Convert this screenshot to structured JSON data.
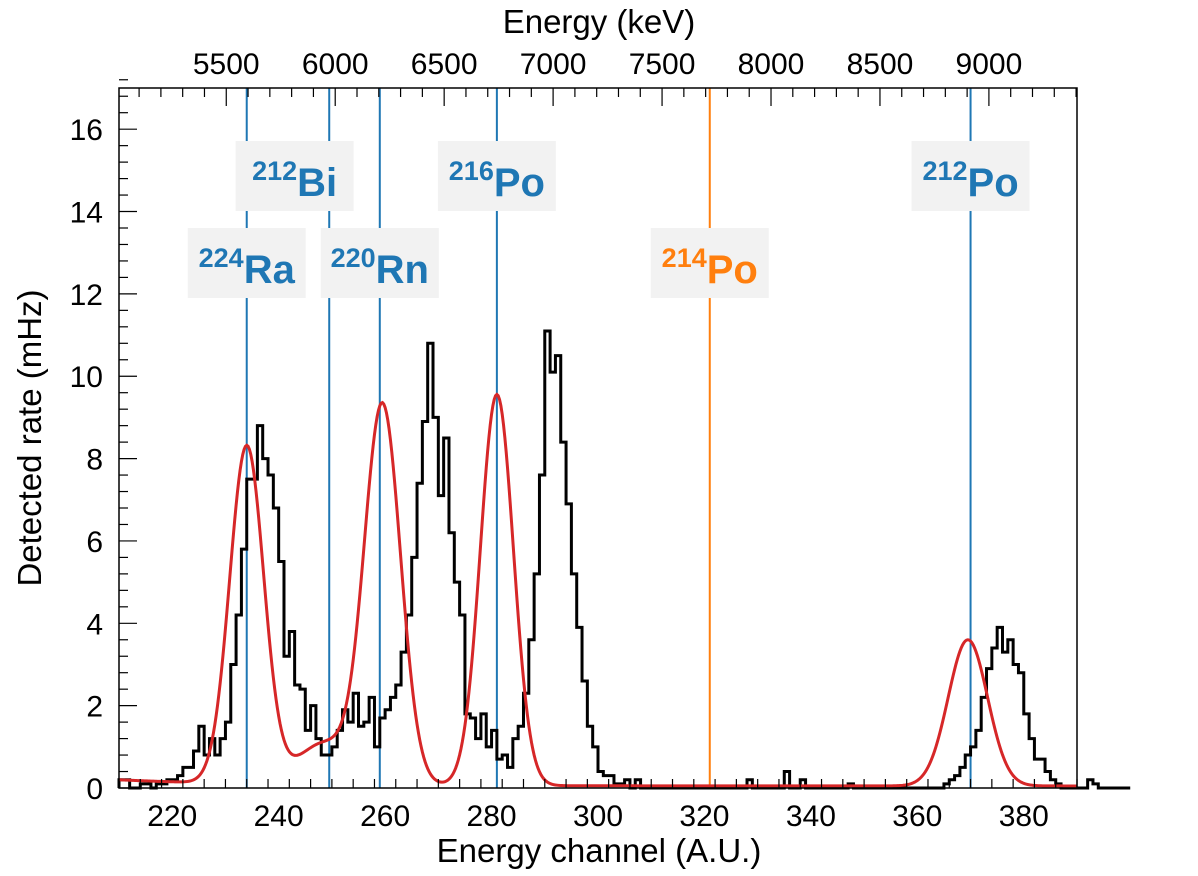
{
  "chart_data": {
    "type": "line",
    "title": "",
    "xlabel": "Energy channel (A.U.)",
    "ylabel": "Detected rate (mHz)",
    "x2label": "Energy (keV)",
    "xlim": [
      210,
      390
    ],
    "ylim": [
      0,
      17
    ],
    "x_ticks": [
      220,
      240,
      260,
      280,
      300,
      320,
      340,
      360,
      380
    ],
    "y_ticks": [
      0,
      2,
      4,
      6,
      8,
      10,
      12,
      14,
      16
    ],
    "x2_ticks": [
      5500,
      6000,
      6500,
      7000,
      7500,
      8000,
      8500,
      9000
    ],
    "x2_calibration": {
      "channel_a": 220,
      "kev_a": 5252,
      "channel_b": 380,
      "kev_b": 9160
    },
    "grid": false,
    "colors": {
      "histogram": "#000000",
      "fit": "#d62728",
      "line_blue": "#1f77b4",
      "line_orange": "#ff7f0e",
      "label_box": "#f2f2f2"
    },
    "histogram": {
      "name": "",
      "bin_width": 1,
      "x_start": 210,
      "values": [
        0.2,
        0.2,
        0.0,
        0.0,
        0.1,
        0.1,
        0.0,
        0.1,
        0.1,
        0.2,
        0.2,
        0.3,
        0.5,
        0.5,
        0.9,
        1.5,
        0.8,
        1.2,
        0.8,
        1.2,
        1.6,
        3.0,
        4.2,
        5.8,
        7.5,
        7.5,
        8.8,
        8.0,
        7.6,
        6.8,
        5.5,
        3.2,
        3.8,
        2.5,
        2.4,
        1.4,
        2.0,
        1.2,
        0.8,
        0.8,
        1.0,
        1.4,
        1.9,
        1.6,
        2.3,
        1.5,
        1.6,
        2.2,
        1.0,
        1.7,
        1.9,
        2.2,
        2.5,
        3.3,
        4.2,
        5.6,
        7.4,
        8.9,
        10.8,
        9.0,
        7.1,
        8.5,
        6.2,
        5.0,
        4.2,
        1.8,
        1.7,
        1.2,
        1.8,
        1.0,
        1.4,
        0.7,
        0.8,
        0.5,
        1.2,
        1.5,
        2.3,
        3.6,
        5.2,
        7.6,
        11.1,
        10.1,
        10.5,
        8.4,
        6.9,
        5.2,
        3.9,
        2.6,
        1.5,
        1.0,
        0.4,
        0.3,
        0.3,
        0.1,
        0.1,
        0.2,
        0.0,
        0.2,
        0.0,
        0.0,
        0.0,
        0.0,
        0.0,
        0.0,
        0.0,
        0.0,
        0.0,
        0.0,
        0.0,
        0.0,
        0.0,
        0.0,
        0.0,
        0.0,
        0.0,
        0.0,
        0.0,
        0.0,
        0.2,
        0.0,
        0.0,
        0.0,
        0.0,
        0.0,
        0.0,
        0.4,
        0.0,
        0.0,
        0.2,
        0.0,
        0.0,
        0.0,
        0.0,
        0.0,
        0.0,
        0.0,
        0.0,
        0.1,
        0.0,
        0.0,
        0.0,
        0.0,
        0.0,
        0.0,
        0.0,
        0.0,
        0.0,
        0.0,
        0.0,
        0.0,
        0.0,
        0.0,
        0.0,
        0.0,
        0.0,
        0.1,
        0.2,
        0.3,
        0.5,
        0.8,
        1.0,
        1.4,
        2.2,
        2.9,
        3.4,
        3.9,
        3.3,
        3.6,
        3.0,
        2.8,
        1.8,
        1.2,
        0.7,
        0.7,
        0.4,
        0.2,
        0.1,
        0.0,
        0.0,
        0.0,
        0.0,
        0.0,
        0.2,
        0.1,
        0.0,
        0.0,
        0.0,
        0.0,
        0.0,
        0.0
      ]
    },
    "fit": {
      "name": "",
      "background": {
        "level": 0.05,
        "amplitude": 0.15,
        "decay": 25
      },
      "peaks": [
        {
          "center": 234,
          "sigma": 3.2,
          "amplitude": 8.2
        },
        {
          "center": 248.5,
          "sigma": 5.0,
          "amplitude": 1.0
        },
        {
          "center": 259.5,
          "sigma": 3.4,
          "amplitude": 9.2
        },
        {
          "center": 281,
          "sigma": 3.1,
          "amplitude": 9.5
        },
        {
          "center": 369.5,
          "sigma": 3.7,
          "amplitude": 3.55
        }
      ]
    },
    "annotations": [
      {
        "isotope": "Ra",
        "mass": "224",
        "channel": 234,
        "color": "#1f77b4",
        "row": "low"
      },
      {
        "isotope": "Bi",
        "mass": "212",
        "channel": 249.5,
        "color": "#1f77b4",
        "row": "high",
        "text_center": 243
      },
      {
        "isotope": "Rn",
        "mass": "220",
        "channel": 259,
        "color": "#1f77b4",
        "row": "low"
      },
      {
        "isotope": "Po",
        "mass": "216",
        "channel": 281,
        "color": "#1f77b4",
        "row": "high"
      },
      {
        "isotope": "Po",
        "mass": "214",
        "channel": 321,
        "color": "#ff7f0e",
        "row": "low"
      },
      {
        "isotope": "Po",
        "mass": "212",
        "channel": 370,
        "color": "#1f77b4",
        "row": "high"
      }
    ]
  }
}
